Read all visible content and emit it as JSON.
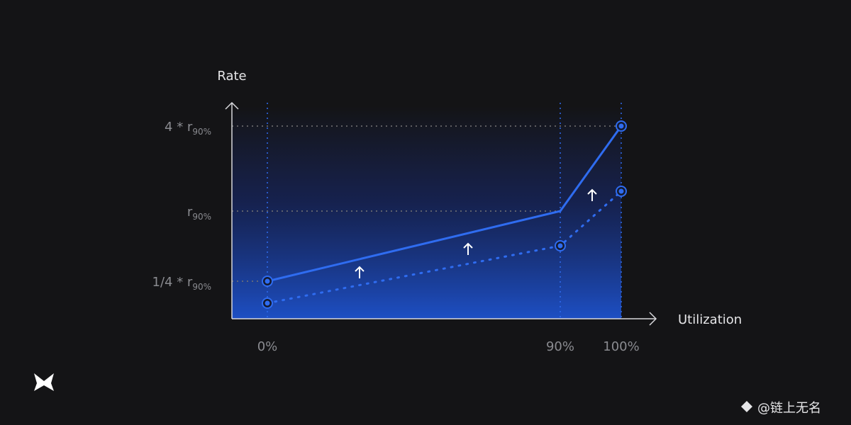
{
  "axes": {
    "y_label": "Rate",
    "x_label": "Utilization"
  },
  "x_ticks": [
    "0%",
    "90%",
    "100%"
  ],
  "y_ticks": [
    {
      "main": "4 * r",
      "sub": "90%"
    },
    {
      "main": "r",
      "sub": "90%"
    },
    {
      "main": "1/4 * r",
      "sub": "90%"
    }
  ],
  "watermark": "@链上无名"
}
